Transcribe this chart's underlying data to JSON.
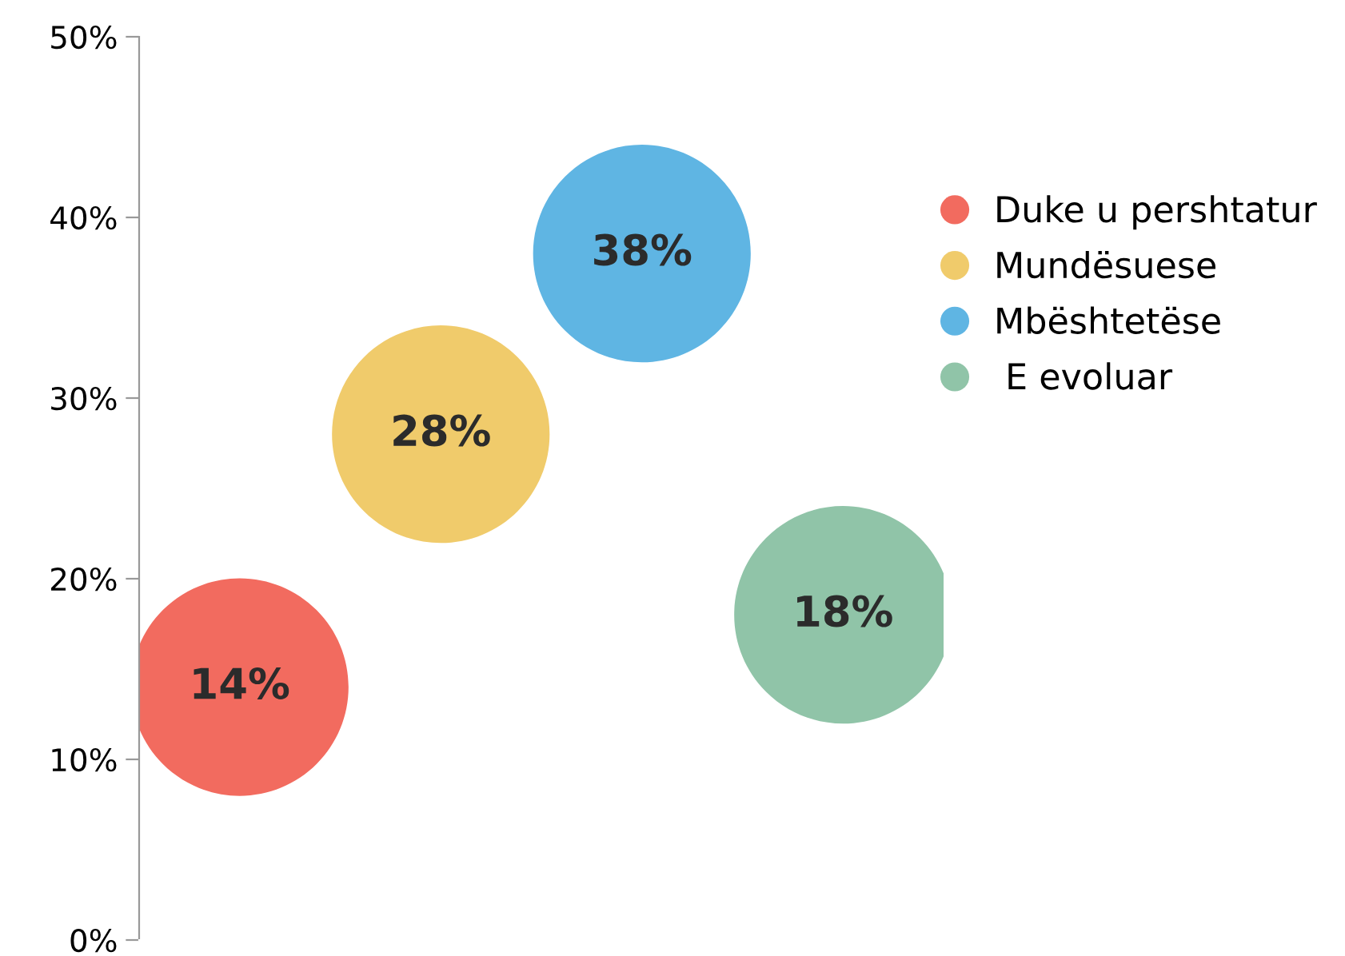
{
  "chart_data": {
    "type": "scatter",
    "categories": [
      null,
      null,
      null,
      null
    ],
    "series": [
      {
        "name": "Duke u pershtatur",
        "color": "#f26b5f",
        "values": [
          14,
          null,
          null,
          null
        ],
        "value_labels": [
          "14%",
          null,
          null,
          null
        ]
      },
      {
        "name": "Mundësuese",
        "color": "#f0cb6b",
        "values": [
          null,
          28,
          null,
          null
        ],
        "value_labels": [
          null,
          "28%",
          null,
          null
        ]
      },
      {
        "name": "Mbështetëse",
        "color": "#5fb5e3",
        "values": [
          null,
          null,
          38,
          null
        ],
        "value_labels": [
          null,
          null,
          "38%",
          null
        ]
      },
      {
        "name": " E evoluar",
        "color": "#90c4a8",
        "values": [
          null,
          null,
          null,
          18
        ],
        "value_labels": [
          null,
          null,
          null,
          "18%"
        ]
      }
    ],
    "ylim": [
      0,
      50
    ],
    "yticks": [
      {
        "value": 0,
        "label": "0%"
      },
      {
        "value": 10,
        "label": "10%"
      },
      {
        "value": 20,
        "label": "20%"
      },
      {
        "value": 30,
        "label": "30%"
      },
      {
        "value": 40,
        "label": "40%"
      },
      {
        "value": 50,
        "label": "50%"
      }
    ],
    "tick_labels": "y",
    "grid": false,
    "legend": "top right",
    "marker": "circle"
  }
}
